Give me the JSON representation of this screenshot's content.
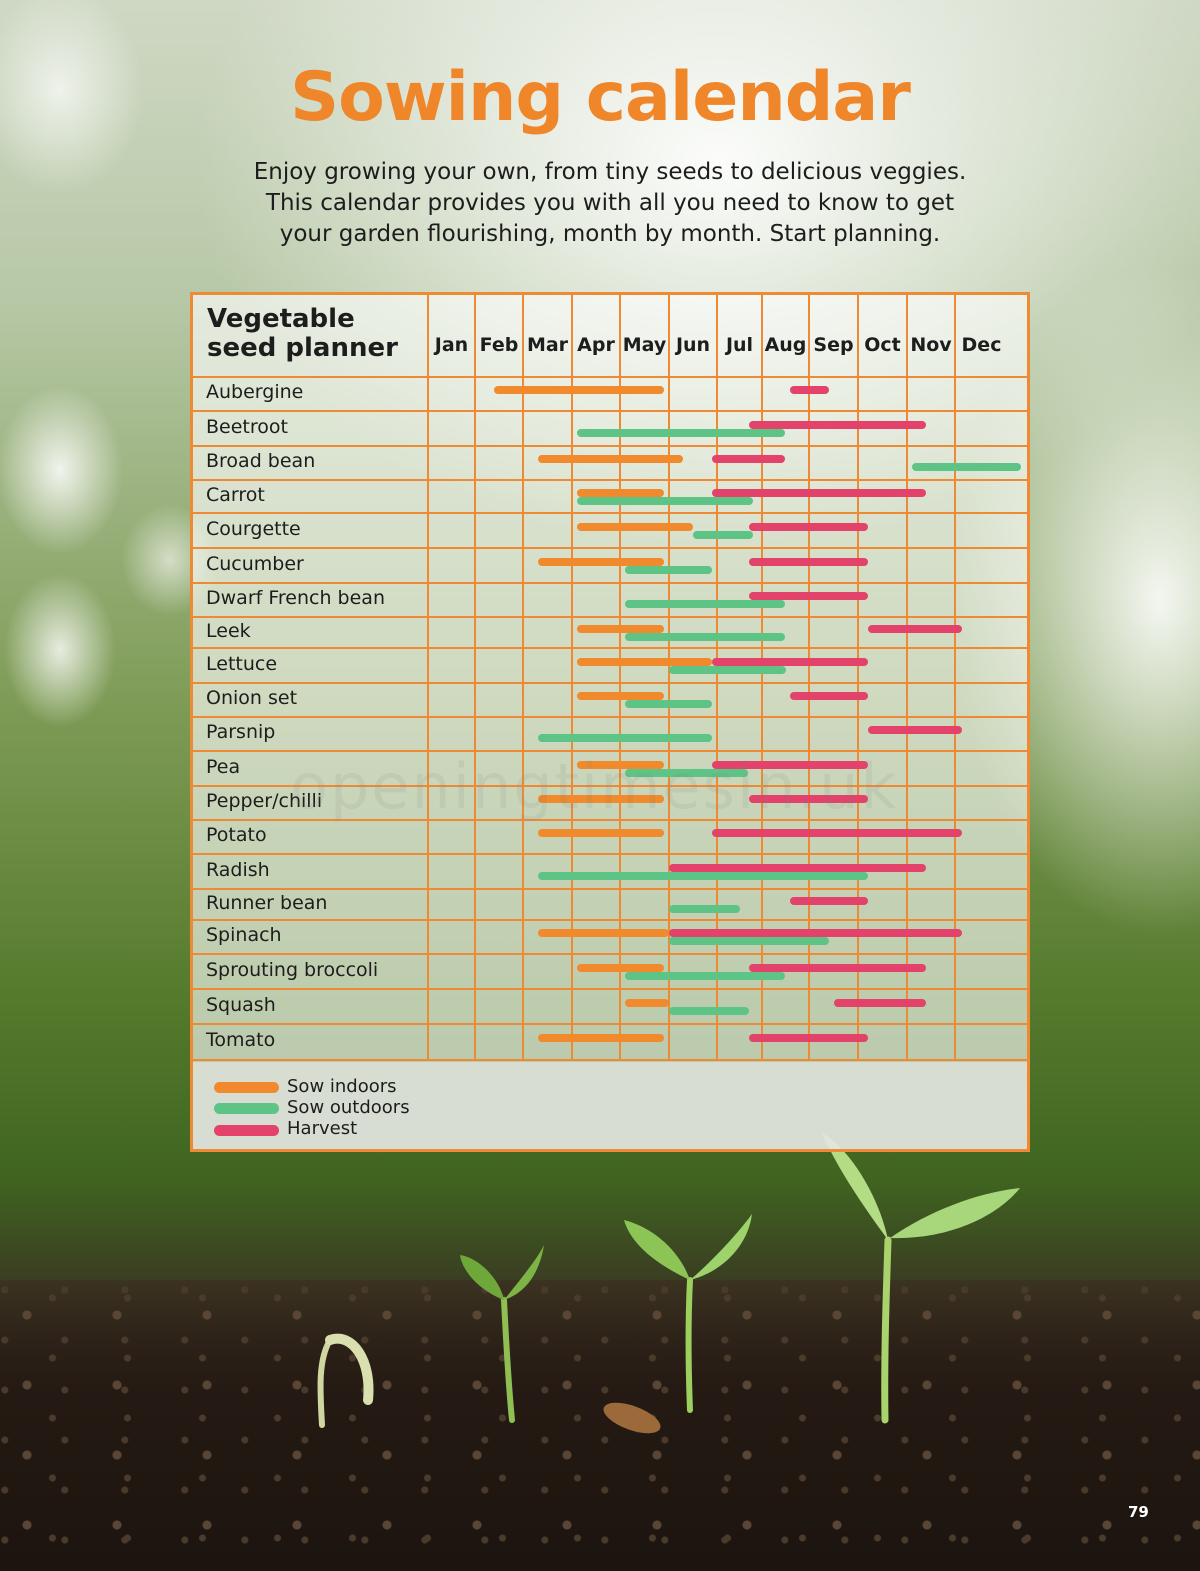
{
  "page": {
    "title": "Sowing calendar",
    "subtitle_lines": [
      "Enjoy growing your own, from tiny seeds to delicious veggies.",
      "This calendar provides you with all you need to know to get",
      "your garden flourishing, month by month. Start planning."
    ],
    "page_number": "79",
    "watermark": "openingtimesin.uk"
  },
  "planner": {
    "heading_lines": [
      "Vegetable",
      "seed planner"
    ],
    "months": [
      "Jan",
      "Feb",
      "Mar",
      "Apr",
      "May",
      "Jun",
      "Jul",
      "Aug",
      "Sep",
      "Oct",
      "Nov",
      "Dec"
    ],
    "colors": {
      "indoors": "#f08a2c",
      "outdoors": "#5dc486",
      "harvest": "#e3426b",
      "grid": "#ee8a33"
    },
    "legend": [
      {
        "key": "indoors",
        "label": "Sow indoors"
      },
      {
        "key": "outdoors",
        "label": "Sow outdoors"
      },
      {
        "key": "harvest",
        "label": "Harvest"
      }
    ],
    "rows": [
      {
        "name": "Aubergine",
        "indoors": [
          1.4,
          4.9
        ],
        "outdoors": null,
        "harvest": [
          7.6,
          8.4
        ]
      },
      {
        "name": "Beetroot",
        "indoors": null,
        "outdoors": [
          3.1,
          7.5
        ],
        "harvest": [
          6.7,
          10.4
        ]
      },
      {
        "name": "Broad bean",
        "indoors": [
          2.3,
          5.3
        ],
        "outdoors": [
          10.1,
          11.9
        ],
        "harvest": [
          5.9,
          7.5
        ]
      },
      {
        "name": "Carrot",
        "indoors": [
          3.1,
          4.9
        ],
        "outdoors": [
          3.1,
          6.8
        ],
        "harvest": [
          5.9,
          10.4
        ]
      },
      {
        "name": "Courgette",
        "indoors": [
          3.1,
          5.5
        ],
        "outdoors": [
          5.5,
          6.8
        ],
        "harvest": [
          6.7,
          9.2
        ]
      },
      {
        "name": "Cucumber",
        "indoors": [
          2.3,
          4.9
        ],
        "outdoors": [
          4.1,
          5.9
        ],
        "harvest": [
          6.7,
          9.2
        ]
      },
      {
        "name": "Dwarf French bean",
        "indoors": null,
        "outdoors": [
          4.1,
          7.5
        ],
        "harvest": [
          6.7,
          9.2
        ]
      },
      {
        "name": "Leek",
        "indoors": [
          3.1,
          4.9
        ],
        "outdoors": [
          4.1,
          7.5
        ],
        "harvest": [
          9.2,
          11.1
        ]
      },
      {
        "name": "Lettuce",
        "indoors": [
          3.1,
          5.9
        ],
        "outdoors": [
          5.0,
          7.5
        ],
        "harvest": [
          5.9,
          9.2
        ]
      },
      {
        "name": "Onion set",
        "indoors": [
          3.1,
          4.9
        ],
        "outdoors": [
          4.1,
          5.9
        ],
        "harvest": [
          7.6,
          9.2
        ]
      },
      {
        "name": "Parsnip",
        "indoors": null,
        "outdoors": [
          2.3,
          5.9
        ],
        "harvest": [
          9.2,
          11.1
        ]
      },
      {
        "name": "Pea",
        "indoors": [
          3.1,
          4.9
        ],
        "outdoors": [
          4.1,
          6.7
        ],
        "harvest": [
          5.9,
          9.2
        ]
      },
      {
        "name": "Pepper/chilli",
        "indoors": [
          2.3,
          4.9
        ],
        "outdoors": null,
        "harvest": [
          6.7,
          9.2
        ]
      },
      {
        "name": "Potato",
        "indoors": [
          2.3,
          4.9
        ],
        "outdoors": null,
        "harvest": [
          5.9,
          11.1
        ]
      },
      {
        "name": "Radish",
        "indoors": null,
        "outdoors": [
          2.3,
          9.2
        ],
        "harvest": [
          5.0,
          10.4
        ]
      },
      {
        "name": "Runner bean",
        "indoors": null,
        "outdoors": [
          5.0,
          6.5
        ],
        "harvest": [
          7.6,
          9.2
        ]
      },
      {
        "name": "Spinach",
        "indoors": [
          2.3,
          5.0
        ],
        "outdoors": [
          5.0,
          8.4
        ],
        "harvest": [
          5.0,
          11.1
        ]
      },
      {
        "name": "Sprouting broccoli",
        "indoors": [
          3.1,
          4.9
        ],
        "outdoors": [
          4.1,
          7.5
        ],
        "harvest": [
          6.7,
          10.4
        ]
      },
      {
        "name": "Squash",
        "indoors": [
          4.1,
          5.0
        ],
        "outdoors": [
          5.0,
          6.7
        ],
        "harvest": [
          8.5,
          10.4
        ]
      },
      {
        "name": "Tomato",
        "indoors": [
          2.3,
          4.9
        ],
        "outdoors": null,
        "harvest": [
          6.7,
          9.2
        ]
      }
    ]
  }
}
